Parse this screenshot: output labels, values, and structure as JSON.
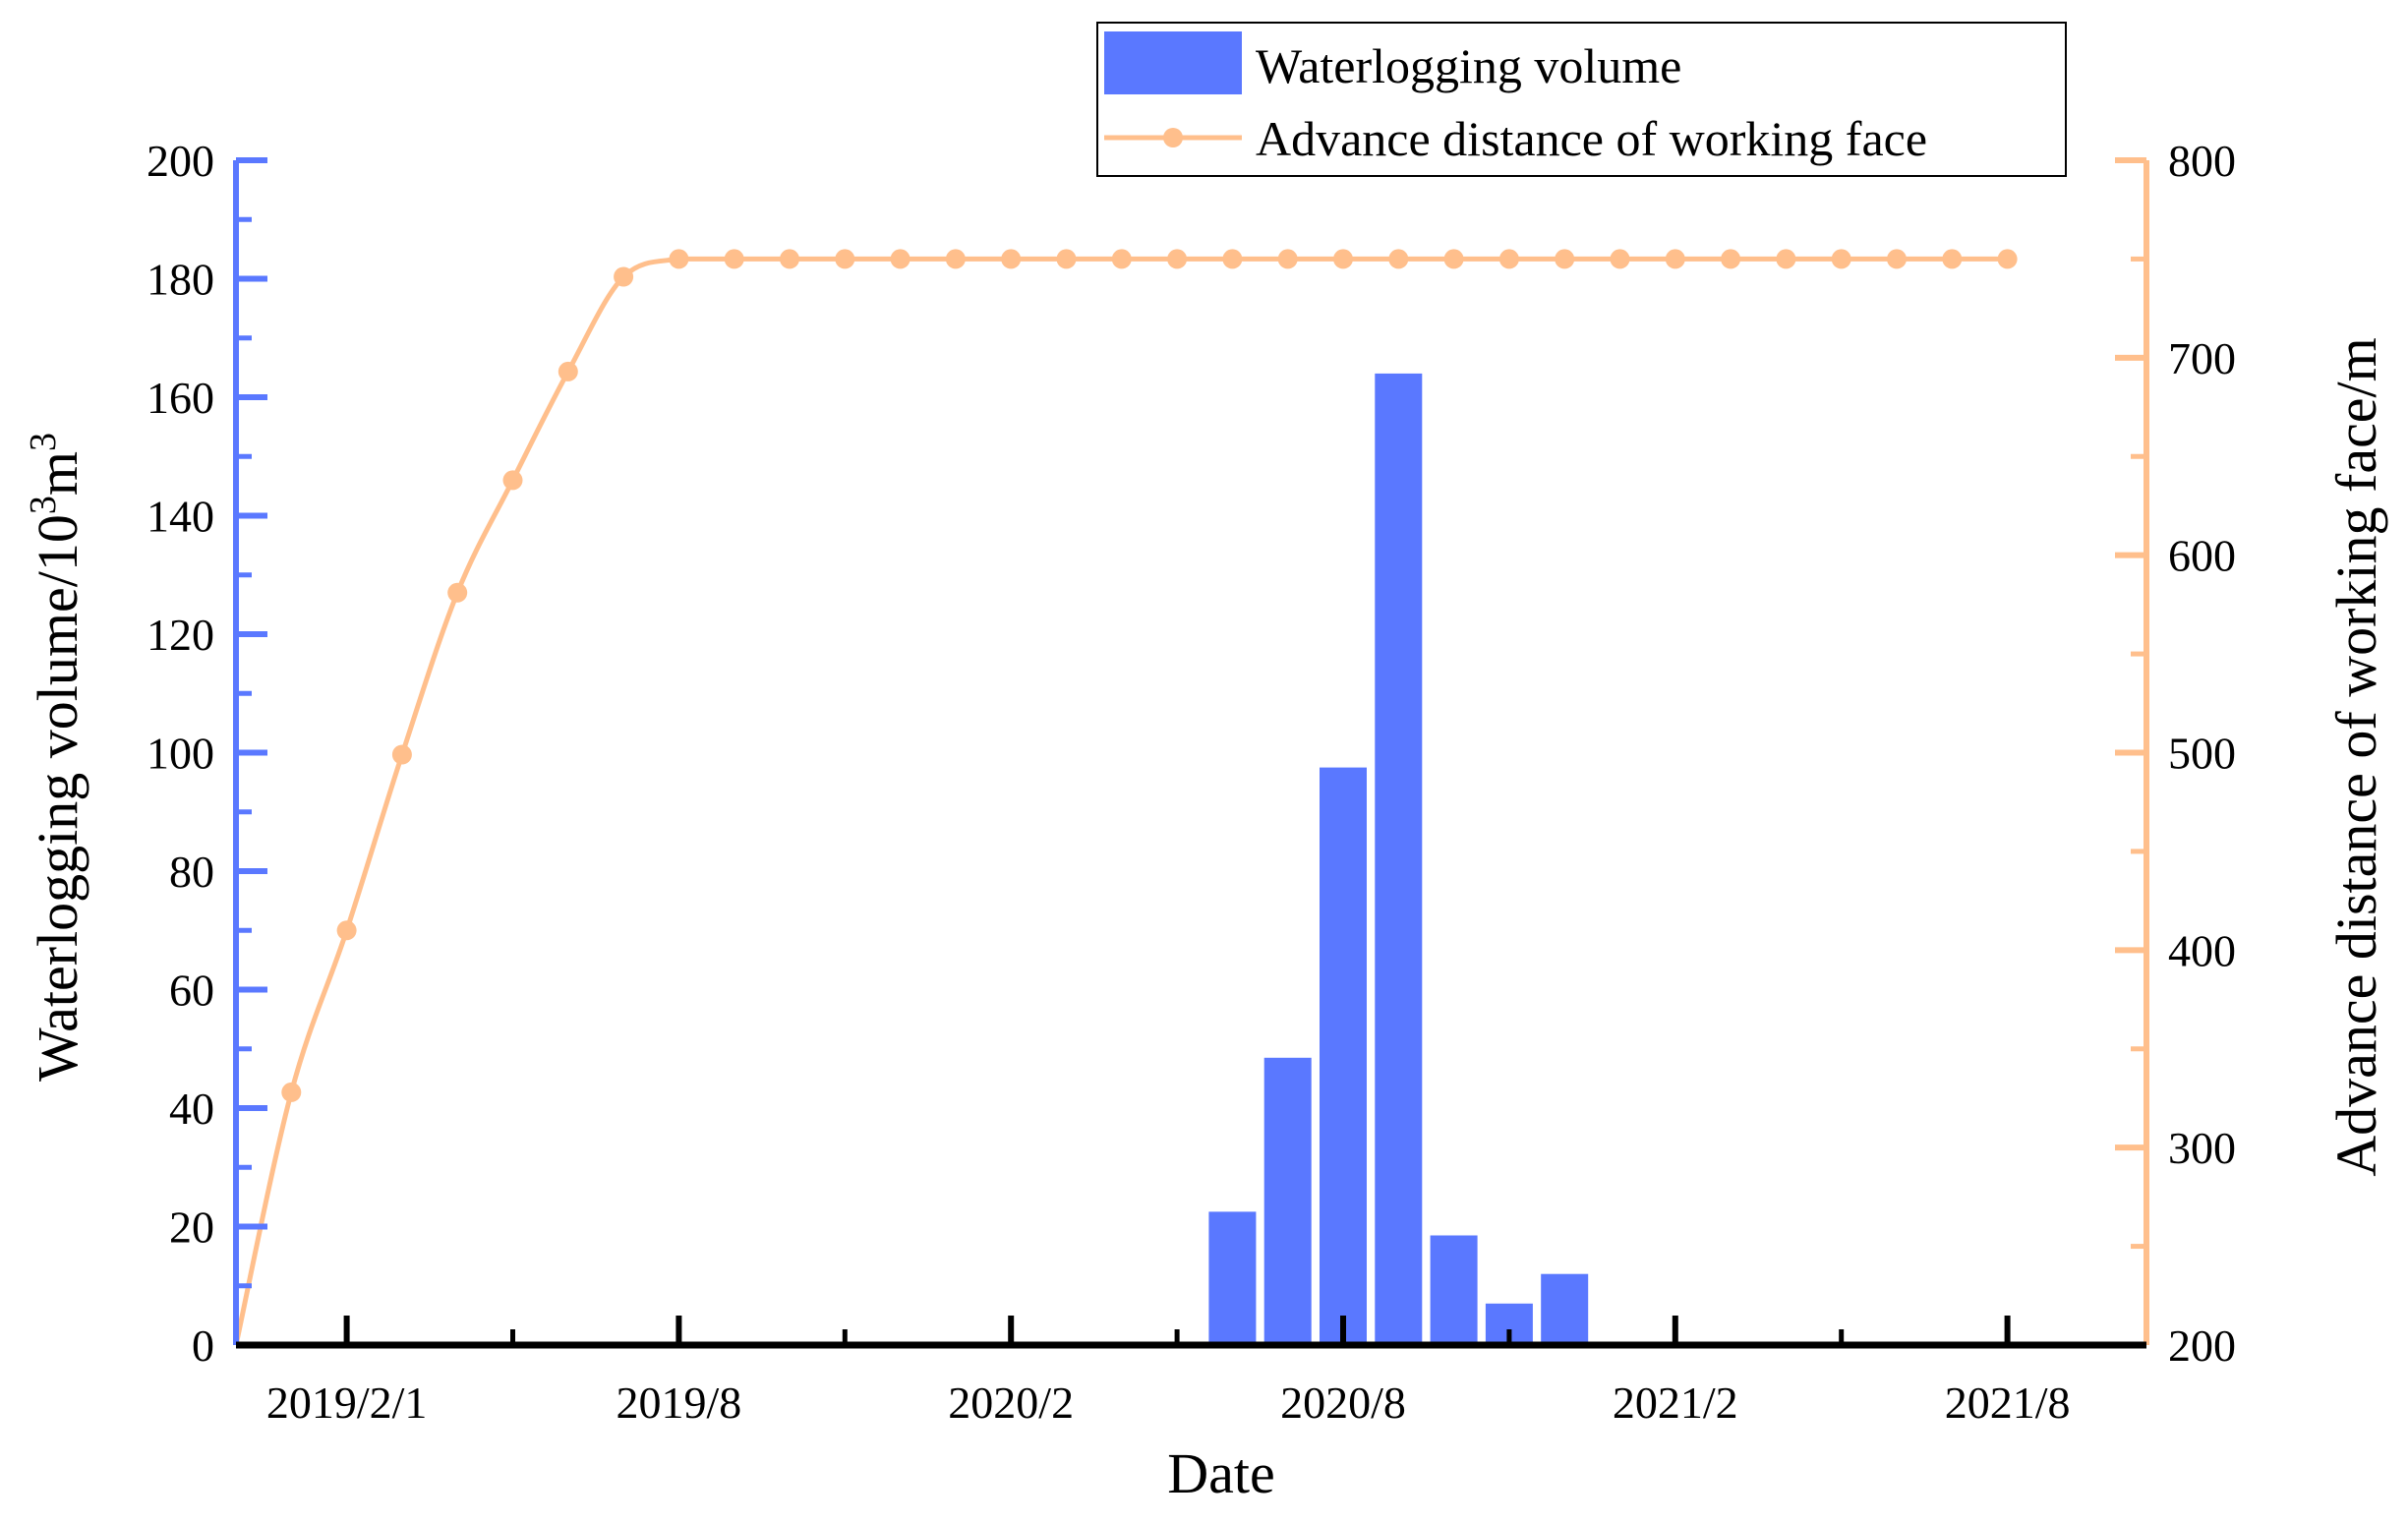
{
  "colors": {
    "bar": "#5A78FF",
    "line": "#FFBF8C",
    "left_axis": "#5A78FF",
    "right_axis": "#FFBF8C",
    "bottom_axis": "#000000"
  },
  "chart_data": {
    "type": "bar+line",
    "xlabel": "Date",
    "ylabel_left": "Waterlogging volume/10",
    "ylabel_left_sup1": "3",
    "ylabel_left_mid": "m",
    "ylabel_left_sup2": "3",
    "ylabel_right": "Advance distance of working face/m",
    "x_tick_labels": [
      {
        "month_index": 2,
        "label": "2019/2/1"
      },
      {
        "month_index": 8,
        "label": "2019/8"
      },
      {
        "month_index": 14,
        "label": "2020/2"
      },
      {
        "month_index": 20,
        "label": "2020/8"
      },
      {
        "month_index": 26,
        "label": "2021/2"
      },
      {
        "month_index": 32,
        "label": "2021/8"
      }
    ],
    "x_range_months": [
      0,
      34.3
    ],
    "y_left": {
      "min": 0,
      "max": 200,
      "ticks": [
        0,
        20,
        40,
        60,
        80,
        100,
        120,
        140,
        160,
        180,
        200
      ]
    },
    "y_right": {
      "min": 200,
      "max": 800,
      "ticks": [
        200,
        300,
        400,
        500,
        600,
        700,
        800
      ]
    },
    "series": [
      {
        "name": "Waterlogging volume",
        "type": "bar",
        "axis": "left",
        "month_index": [
          18,
          19,
          20,
          21,
          22,
          23,
          24
        ],
        "values": [
          22.5,
          48.5,
          97.5,
          164,
          18.5,
          7,
          12
        ]
      },
      {
        "name": "Advance distance of working face",
        "type": "line",
        "axis": "right",
        "month_index": [
          0,
          1,
          2,
          3,
          4,
          5,
          6,
          7,
          8,
          9,
          10,
          11,
          12,
          13,
          14,
          15,
          16,
          17,
          18,
          19,
          20,
          21,
          22,
          23,
          24,
          25,
          26,
          27,
          28,
          29,
          30,
          31,
          32
        ],
        "values": [
          200,
          328,
          410,
          499,
          581,
          638,
          693,
          741,
          750,
          750,
          750,
          750,
          750,
          750,
          750,
          750,
          750,
          750,
          750,
          750,
          750,
          750,
          750,
          750,
          750,
          750,
          750,
          750,
          750,
          750,
          750,
          750,
          750
        ]
      }
    ],
    "legend": {
      "position": "top-right",
      "entries": [
        "Waterlogging volume",
        "Advance distance of working face"
      ]
    }
  }
}
